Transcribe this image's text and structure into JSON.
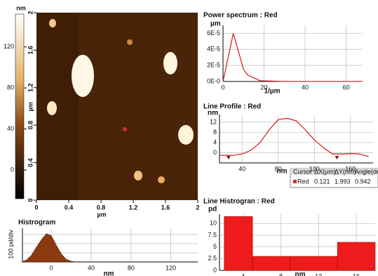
{
  "afm_image": {
    "xticks": [
      0,
      0.4,
      0.8,
      1.2,
      1.6,
      2
    ],
    "yticks": [
      0,
      0.4,
      0.8,
      1.2,
      1.6,
      2
    ],
    "xlim": [
      0,
      2
    ],
    "ylim": [
      0,
      2
    ],
    "x_label": "µm",
    "y_label": "µm",
    "colorbar": {
      "label": "nm",
      "lim": [
        -28,
        152
      ],
      "ticks": [
        0,
        40,
        80,
        120
      ]
    }
  },
  "cursor_table": {
    "header": [
      "Cursor",
      "ΔX(µm)",
      "ΔY(nm)",
      "Angle(deg)"
    ],
    "rows": [
      [
        "Red",
        "0.121",
        "1.993",
        "0.942"
      ]
    ]
  },
  "chart_data": [
    {
      "type": "line",
      "title": "Power spectrum : Red",
      "y_unit": "µm",
      "x_label": "1/µm",
      "color": "#d42a2a",
      "x": [
        0,
        5,
        10,
        12,
        18,
        30,
        68
      ],
      "values": [
        0,
        6e-05,
        1.5e-05,
        8e-06,
        1e-06,
        0,
        0
      ],
      "xlim": [
        0,
        68
      ],
      "ylim": [
        0,
        7e-05
      ],
      "xticks": [
        0,
        20,
        40,
        60
      ],
      "yticks": [
        {
          "value": 0,
          "label": "0E-0"
        },
        {
          "value": 2e-05,
          "label": "2E-5"
        },
        {
          "value": 4e-05,
          "label": "4E-5"
        },
        {
          "value": 6e-05,
          "label": "6E-5"
        }
      ],
      "grid": true
    },
    {
      "type": "line",
      "title": "Line Profile : Red",
      "y_unit": "nm",
      "x_label": "nm",
      "color": "#d42a2a",
      "x": [
        15,
        30,
        40,
        50,
        60,
        70,
        80,
        90,
        100,
        110,
        120,
        130,
        140,
        150,
        160,
        170,
        180
      ],
      "values": [
        -1,
        -1,
        -0.5,
        1,
        4,
        9,
        13,
        13.5,
        12.5,
        9,
        5,
        2,
        -0.5,
        -0.5,
        -0.3,
        -0.5,
        -1.5
      ],
      "cursors": [
        25,
        145
      ],
      "xlim": [
        15,
        185
      ],
      "ylim": [
        -4,
        15
      ],
      "xticks": [
        40,
        80,
        120,
        160
      ],
      "yticks": [
        0,
        4,
        8,
        12
      ],
      "grid": true
    },
    {
      "type": "histogram",
      "title": "Line Histrogran : Red",
      "y_unit": "pd",
      "x_label": "nm",
      "color": "#ee1c1c",
      "bins": [
        2,
        5,
        9,
        14,
        18
      ],
      "values": [
        11.5,
        3,
        3,
        6
      ],
      "xlim": [
        1.5,
        18
      ],
      "ylim": [
        0,
        12
      ],
      "xticks": [
        4,
        8,
        12,
        16
      ],
      "yticks": [
        0,
        2.5,
        5,
        7.5,
        10
      ],
      "grid": true
    },
    {
      "type": "area",
      "title": "Histrogram",
      "y_label": "100 pd/div",
      "x_label": "nm",
      "color": "#8b3a10",
      "x": [
        -30,
        -25,
        -20,
        -15,
        -10,
        -5,
        0,
        5,
        10,
        15,
        20,
        25
      ],
      "values": [
        0,
        30,
        100,
        220,
        330,
        420,
        390,
        250,
        120,
        40,
        10,
        0
      ],
      "xlim": [
        -29,
        147
      ],
      "ylim": [
        0,
        500
      ],
      "xticks": [
        0,
        40,
        80,
        120
      ],
      "grid": true
    }
  ]
}
